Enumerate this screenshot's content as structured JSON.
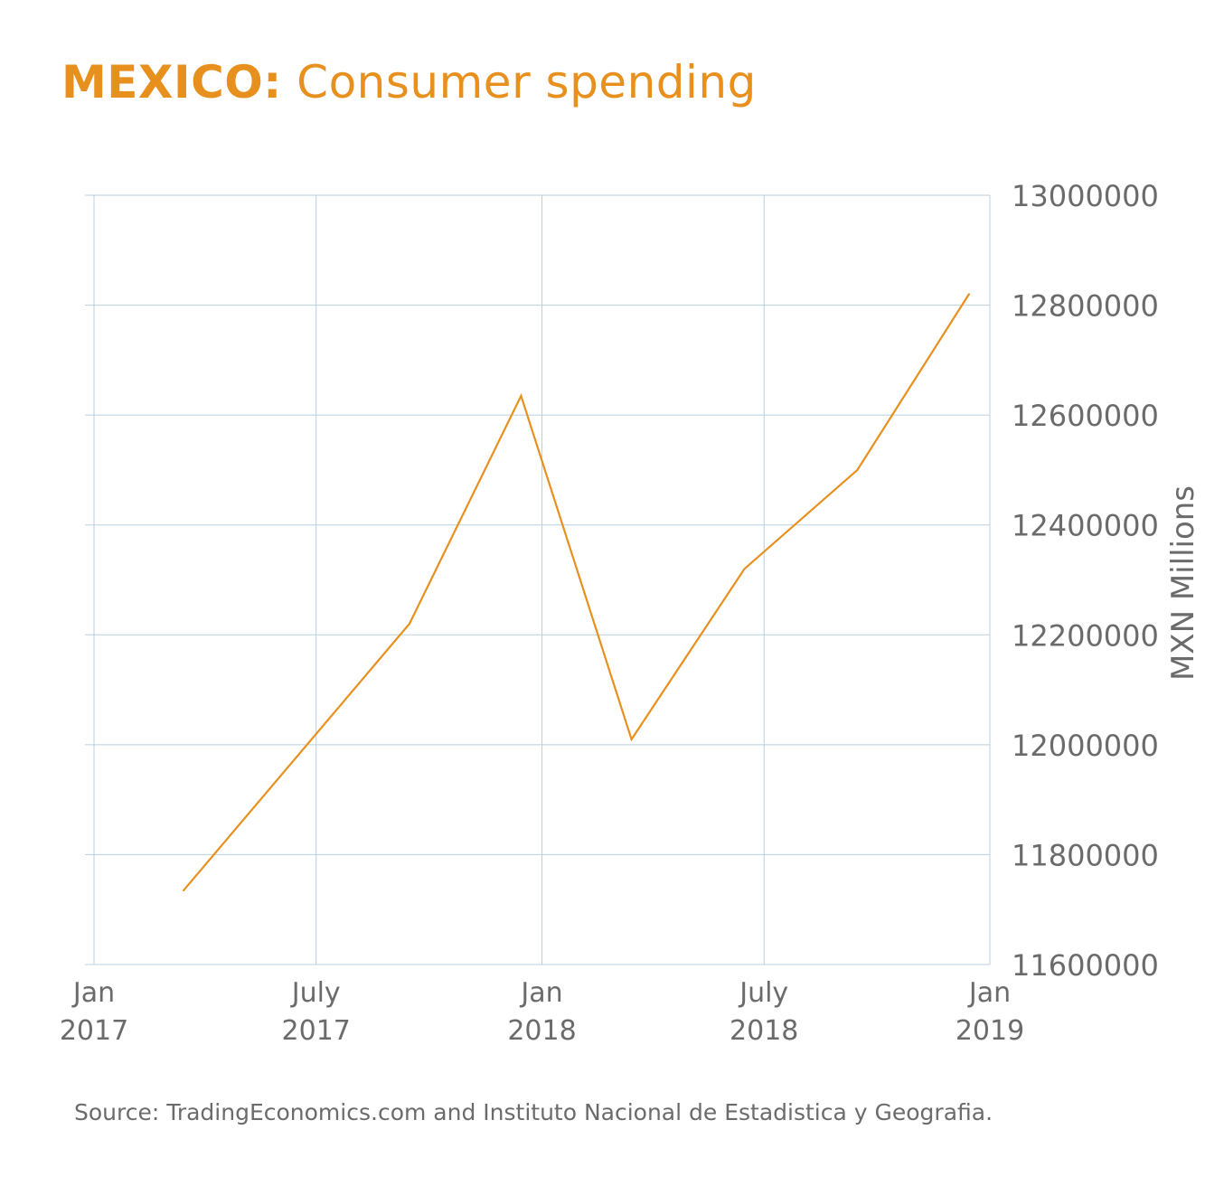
{
  "title_country": "MEXICO:",
  "title_rest": "Consumer spending",
  "source": "Source: TradingEconomics.com and Instituto Nacional de Estadistica y Geografia.",
  "colors": {
    "line": "#e8901e",
    "grid": "#b9cfe0",
    "text": "#6b6b6b",
    "title": "#e8901e"
  },
  "chart_data": {
    "type": "line",
    "title": "MEXICO: Consumer spending",
    "xlabel": "",
    "ylabel": "MXN Millions",
    "yaxis_position": "right",
    "grid": true,
    "xlim": [
      "2017-01-01",
      "2019-01-01"
    ],
    "ylim": [
      11600000,
      13000000
    ],
    "x_ticks": [
      {
        "date": "2017-01-01",
        "line1": "Jan",
        "line2": "2017"
      },
      {
        "date": "2017-07-01",
        "line1": "July",
        "line2": "2017"
      },
      {
        "date": "2018-01-01",
        "line1": "Jan",
        "line2": "2018"
      },
      {
        "date": "2018-07-01",
        "line1": "July",
        "line2": "2018"
      },
      {
        "date": "2019-01-01",
        "line1": "Jan",
        "line2": "2019"
      }
    ],
    "y_ticks": [
      11600000,
      11800000,
      12000000,
      12200000,
      12400000,
      12600000,
      12800000,
      13000000
    ],
    "series": [
      {
        "points": [
          {
            "x": "2017-03-15",
            "y": 11735000
          },
          {
            "x": "2017-09-15",
            "y": 12220000
          },
          {
            "x": "2017-12-15",
            "y": 12635000
          },
          {
            "x": "2018-03-15",
            "y": 12010000
          },
          {
            "x": "2018-06-15",
            "y": 12320000
          },
          {
            "x": "2018-09-15",
            "y": 12500000
          },
          {
            "x": "2018-12-15",
            "y": 12820000
          }
        ]
      }
    ]
  }
}
